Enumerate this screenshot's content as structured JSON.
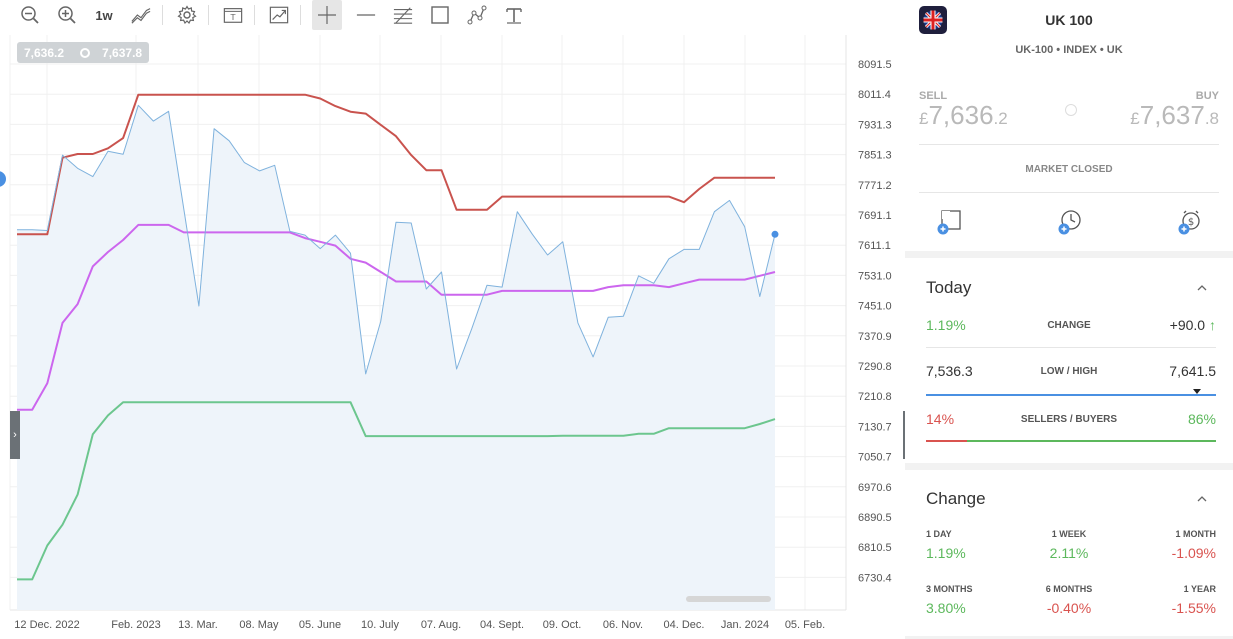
{
  "toolbar": {
    "timeframe_label": "1w",
    "tools": [
      "zoom-out-icon",
      "zoom-in-icon",
      "timeframe",
      "chart-type-icon",
      "settings-icon",
      "template-icon",
      "indicator-icon",
      "crosshair-icon",
      "horizontal-line-icon",
      "fibonacci-icon",
      "rectangle-icon",
      "path-icon",
      "text-icon"
    ]
  },
  "crosshair": {
    "sell": "7,636.2",
    "buy": "7,637.8"
  },
  "chart_data": {
    "type": "line",
    "x_tick_labels": [
      "12 Dec. 2022",
      "Feb. 2023",
      "13. Mar.",
      "08. May",
      "05. June",
      "10. July",
      "07. Aug.",
      "04. Sept.",
      "09. Oct.",
      "06. Nov.",
      "04. Dec.",
      "Jan. 2024",
      "05. Feb."
    ],
    "y_tick_labels": [
      "8091.5",
      "8011.4",
      "7931.3",
      "7851.3",
      "7771.2",
      "7691.1",
      "7611.1",
      "7531.0",
      "7451.0",
      "7370.9",
      "7290.8",
      "7210.8",
      "7130.7",
      "7050.7",
      "6970.6",
      "6890.5",
      "6810.5",
      "6730.4"
    ],
    "ylim": [
      6705,
      8130
    ],
    "colors": {
      "price": "#7fb2dd",
      "price_fill": "#eef4fa",
      "upper": "#c9534e",
      "middle": "#cc66ee",
      "lower": "#6cc68e"
    },
    "series": [
      {
        "key": "price",
        "values": [
          7652,
          7652,
          7650,
          7850,
          7815,
          7793,
          7860,
          7852,
          7982,
          7940,
          7966,
          7707,
          7450,
          7920,
          7888,
          7830,
          7808,
          7823,
          7648,
          7638,
          7602,
          7638,
          7590,
          7270,
          7410,
          7672,
          7670,
          7495,
          7540,
          7283,
          7390,
          7505,
          7500,
          7700,
          7640,
          7585,
          7620,
          7405,
          7315,
          7420,
          7423,
          7530,
          7510,
          7575,
          7600,
          7600,
          7700,
          7730,
          7660,
          7475,
          7640
        ]
      },
      {
        "key": "upper",
        "values": [
          7640,
          7640,
          7640,
          7843,
          7853,
          7853,
          7868,
          7895,
          8010,
          8010,
          8010,
          8010,
          8010,
          8010,
          8010,
          8010,
          8010,
          8010,
          8010,
          8010,
          8000,
          7980,
          7965,
          7960,
          7930,
          7900,
          7850,
          7810,
          7810,
          7705,
          7705,
          7705,
          7740,
          7740,
          7740,
          7740,
          7740,
          7740,
          7740,
          7740,
          7740,
          7740,
          7740,
          7740,
          7725,
          7760,
          7790,
          7790,
          7790,
          7790,
          7790
        ]
      },
      {
        "key": "middle",
        "values": [
          7175,
          7175,
          7245,
          7405,
          7455,
          7555,
          7593,
          7625,
          7665,
          7665,
          7665,
          7645,
          7645,
          7645,
          7645,
          7645,
          7645,
          7645,
          7645,
          7630,
          7620,
          7610,
          7575,
          7565,
          7540,
          7515,
          7515,
          7515,
          7480,
          7480,
          7480,
          7480,
          7490,
          7490,
          7490,
          7490,
          7490,
          7490,
          7490,
          7500,
          7505,
          7505,
          7505,
          7500,
          7510,
          7520,
          7520,
          7520,
          7520,
          7530,
          7540
        ]
      },
      {
        "key": "lower",
        "values": [
          6725,
          6725,
          6815,
          6870,
          6950,
          7110,
          7160,
          7195,
          7195,
          7195,
          7195,
          7195,
          7195,
          7195,
          7195,
          7195,
          7195,
          7195,
          7195,
          7195,
          7195,
          7195,
          7195,
          7105,
          7105,
          7105,
          7105,
          7105,
          7105,
          7105,
          7105,
          7105,
          7105,
          7105,
          7105,
          7105,
          7106,
          7106,
          7106,
          7106,
          7106,
          7111,
          7111,
          7126,
          7126,
          7126,
          7126,
          7126,
          7126,
          7137,
          7150
        ]
      }
    ]
  },
  "instrument": {
    "title": "UK 100",
    "subtitle": "UK-100 • INDEX • UK",
    "sell_label": "SELL",
    "buy_label": "BUY",
    "currency": "£",
    "sell_int": "7,636",
    "sell_dec": ".2",
    "buy_int": "7,637",
    "buy_dec": ".8",
    "market_status": "MARKET CLOSED"
  },
  "today": {
    "title": "Today",
    "change_pct": "1.19%",
    "change_label": "CHANGE",
    "change_abs": "+90.0",
    "low": "7,536.3",
    "lowhigh_label": "LOW / HIGH",
    "high": "7,641.5",
    "sellers": "14%",
    "sellers_label": "SELLERS / BUYERS",
    "buyers": "86%",
    "sellers_fraction": 0.14
  },
  "change": {
    "title": "Change",
    "cells": [
      {
        "label": "1 DAY",
        "value": "1.19%"
      },
      {
        "label": "1 WEEK",
        "value": "2.11%"
      },
      {
        "label": "1 MONTH",
        "value": "-1.09%"
      },
      {
        "label": "3 MONTHS",
        "value": "3.80%"
      },
      {
        "label": "6 MONTHS",
        "value": "-0.40%"
      },
      {
        "label": "1 YEAR",
        "value": "-1.55%"
      }
    ]
  }
}
